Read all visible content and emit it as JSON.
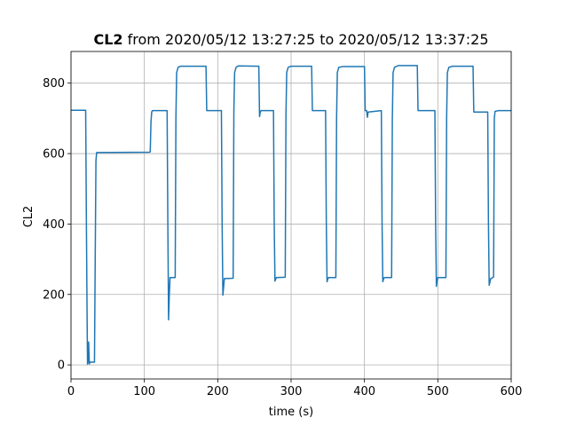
{
  "chart_data": {
    "type": "line",
    "title_bold": "CL2",
    "title_rest": " from 2020/05/12 13:27:25 to 2020/05/12 13:37:25",
    "xlabel": "time (s)",
    "ylabel": "CL2",
    "xlim": [
      0,
      600
    ],
    "ylim": [
      -40,
      890
    ],
    "xticks": [
      0,
      100,
      200,
      300,
      400,
      500,
      600
    ],
    "yticks": [
      0,
      200,
      400,
      600,
      800
    ],
    "grid": true,
    "series": [
      {
        "color": "#1f77b4",
        "points": [
          [
            0,
            723
          ],
          [
            19,
            723
          ],
          [
            20,
            723
          ],
          [
            21,
            400
          ],
          [
            22,
            120
          ],
          [
            22.5,
            2
          ],
          [
            23,
            5
          ],
          [
            24,
            65
          ],
          [
            25,
            3
          ],
          [
            26,
            8
          ],
          [
            31,
            8
          ],
          [
            32,
            8
          ],
          [
            33,
            300
          ],
          [
            34,
            580
          ],
          [
            35,
            603
          ],
          [
            107,
            604
          ],
          [
            108,
            605
          ],
          [
            109,
            690
          ],
          [
            110,
            718
          ],
          [
            111,
            722
          ],
          [
            131,
            722
          ],
          [
            132,
            400
          ],
          [
            133,
            128
          ],
          [
            134,
            200
          ],
          [
            135,
            248
          ],
          [
            142,
            248
          ],
          [
            143,
            700
          ],
          [
            144,
            830
          ],
          [
            146,
            845
          ],
          [
            149,
            848
          ],
          [
            184,
            848
          ],
          [
            185,
            722
          ],
          [
            205,
            722
          ],
          [
            206,
            400
          ],
          [
            207,
            198
          ],
          [
            208,
            220
          ],
          [
            209,
            245
          ],
          [
            221,
            246
          ],
          [
            222,
            720
          ],
          [
            223,
            830
          ],
          [
            225,
            845
          ],
          [
            228,
            849
          ],
          [
            256,
            848
          ],
          [
            257,
            705
          ],
          [
            258,
            718
          ],
          [
            259,
            722
          ],
          [
            276,
            722
          ],
          [
            277,
            400
          ],
          [
            278,
            238
          ],
          [
            279,
            244
          ],
          [
            280,
            248
          ],
          [
            292,
            249
          ],
          [
            293,
            710
          ],
          [
            294,
            830
          ],
          [
            296,
            845
          ],
          [
            300,
            848
          ],
          [
            328,
            848
          ],
          [
            329,
            722
          ],
          [
            347,
            722
          ],
          [
            348,
            400
          ],
          [
            349,
            236
          ],
          [
            350,
            244
          ],
          [
            351,
            248
          ],
          [
            361,
            248
          ],
          [
            362,
            700
          ],
          [
            363,
            830
          ],
          [
            365,
            845
          ],
          [
            370,
            847
          ],
          [
            400,
            847
          ],
          [
            401,
            722
          ],
          [
            403,
            722
          ],
          [
            404,
            703
          ],
          [
            405,
            718
          ],
          [
            423,
            722
          ],
          [
            424,
            400
          ],
          [
            425,
            236
          ],
          [
            426,
            244
          ],
          [
            427,
            248
          ],
          [
            437,
            248
          ],
          [
            438,
            700
          ],
          [
            439,
            830
          ],
          [
            441,
            845
          ],
          [
            446,
            850
          ],
          [
            472,
            850
          ],
          [
            473,
            722
          ],
          [
            496,
            722
          ],
          [
            497,
            400
          ],
          [
            498,
            223
          ],
          [
            499,
            238
          ],
          [
            500,
            248
          ],
          [
            511,
            248
          ],
          [
            512,
            700
          ],
          [
            513,
            830
          ],
          [
            515,
            845
          ],
          [
            520,
            848
          ],
          [
            548,
            848
          ],
          [
            549,
            718
          ],
          [
            568,
            718
          ],
          [
            569,
            400
          ],
          [
            570,
            226
          ],
          [
            571,
            235
          ],
          [
            572,
            245
          ],
          [
            575,
            248
          ],
          [
            576,
            250
          ],
          [
            577,
            700
          ],
          [
            578,
            720
          ],
          [
            583,
            722
          ],
          [
            600,
            722
          ]
        ]
      }
    ]
  }
}
